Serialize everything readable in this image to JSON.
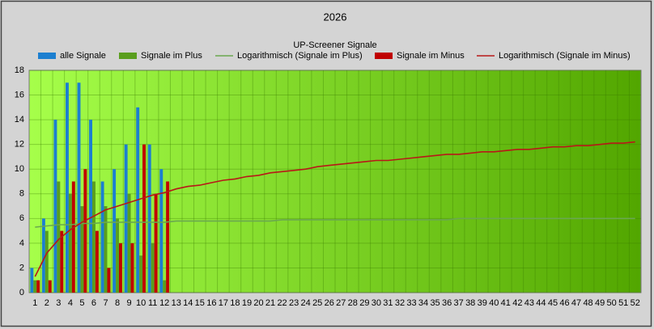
{
  "chart_data": {
    "type": "bar",
    "title": "2026",
    "subtitle": "UP-Screener Signale",
    "categories": [
      "1",
      "2",
      "3",
      "4",
      "5",
      "6",
      "7",
      "8",
      "9",
      "10",
      "11",
      "12",
      "13",
      "14",
      "15",
      "16",
      "17",
      "18",
      "19",
      "20",
      "21",
      "22",
      "23",
      "24",
      "25",
      "26",
      "27",
      "28",
      "29",
      "30",
      "31",
      "32",
      "33",
      "34",
      "35",
      "36",
      "37",
      "38",
      "39",
      "40",
      "41",
      "42",
      "43",
      "44",
      "45",
      "46",
      "47",
      "48",
      "49",
      "50",
      "51",
      "52"
    ],
    "series": [
      {
        "name": "alle Signale",
        "type": "bar",
        "color": "#1c7fd0",
        "values": [
          2,
          6,
          14,
          17,
          17,
          14,
          9,
          10,
          12,
          15,
          12,
          10,
          null,
          null,
          null,
          null,
          null,
          null,
          null,
          null,
          null,
          null,
          null,
          null,
          null,
          null,
          null,
          null,
          null,
          null,
          null,
          null,
          null,
          null,
          null,
          null,
          null,
          null,
          null,
          null,
          null,
          null,
          null,
          null,
          null,
          null,
          null,
          null,
          null,
          null,
          null,
          null
        ]
      },
      {
        "name": "Signale im Plus",
        "type": "bar",
        "color": "#5a9e1e",
        "values": [
          1,
          5,
          9,
          8,
          7,
          9,
          7,
          6,
          8,
          3,
          4,
          1,
          null,
          null,
          null,
          null,
          null,
          null,
          null,
          null,
          null,
          null,
          null,
          null,
          null,
          null,
          null,
          null,
          null,
          null,
          null,
          null,
          null,
          null,
          null,
          null,
          null,
          null,
          null,
          null,
          null,
          null,
          null,
          null,
          null,
          null,
          null,
          null,
          null,
          null,
          null,
          null
        ]
      },
      {
        "name": "Logarithmisch (Signale im Plus)",
        "type": "line",
        "color": "#6aa84f",
        "values": [
          5.3,
          5.4,
          5.5,
          5.5,
          5.6,
          5.6,
          5.7,
          5.7,
          5.7,
          5.7,
          5.7,
          5.7,
          5.8,
          5.8,
          5.8,
          5.8,
          5.8,
          5.8,
          5.8,
          5.8,
          5.8,
          5.9,
          5.9,
          5.9,
          5.9,
          5.9,
          5.9,
          5.9,
          5.9,
          5.9,
          5.9,
          5.9,
          5.9,
          5.9,
          5.9,
          5.9,
          6.0,
          6.0,
          6.0,
          6.0,
          6.0,
          6.0,
          6.0,
          6.0,
          6.0,
          6.0,
          6.0,
          6.0,
          6.0,
          6.0,
          6.0,
          6.0
        ]
      },
      {
        "name": "Signale im Minus",
        "type": "bar",
        "color": "#c00000",
        "values": [
          1,
          1,
          5,
          9,
          10,
          5,
          2,
          4,
          4,
          12,
          8,
          9,
          null,
          null,
          null,
          null,
          null,
          null,
          null,
          null,
          null,
          null,
          null,
          null,
          null,
          null,
          null,
          null,
          null,
          null,
          null,
          null,
          null,
          null,
          null,
          null,
          null,
          null,
          null,
          null,
          null,
          null,
          null,
          null,
          null,
          null,
          null,
          null,
          null,
          null,
          null,
          null
        ]
      },
      {
        "name": "Logarithmisch (Signale im Minus)",
        "type": "line",
        "color": "#b81818",
        "values": [
          1.3,
          3.2,
          4.3,
          5.1,
          5.7,
          6.2,
          6.7,
          7.0,
          7.3,
          7.6,
          7.9,
          8.1,
          8.4,
          8.6,
          8.7,
          8.9,
          9.1,
          9.2,
          9.4,
          9.5,
          9.7,
          9.8,
          9.9,
          10.0,
          10.2,
          10.3,
          10.4,
          10.5,
          10.6,
          10.7,
          10.7,
          10.8,
          10.9,
          11.0,
          11.1,
          11.2,
          11.2,
          11.3,
          11.4,
          11.4,
          11.5,
          11.6,
          11.6,
          11.7,
          11.8,
          11.8,
          11.9,
          11.9,
          12.0,
          12.1,
          12.1,
          12.2
        ]
      }
    ],
    "ylim": [
      0,
      18
    ],
    "yticks": [
      0,
      2,
      4,
      6,
      8,
      10,
      12,
      14,
      16,
      18
    ],
    "grid": true,
    "legend": "top"
  }
}
